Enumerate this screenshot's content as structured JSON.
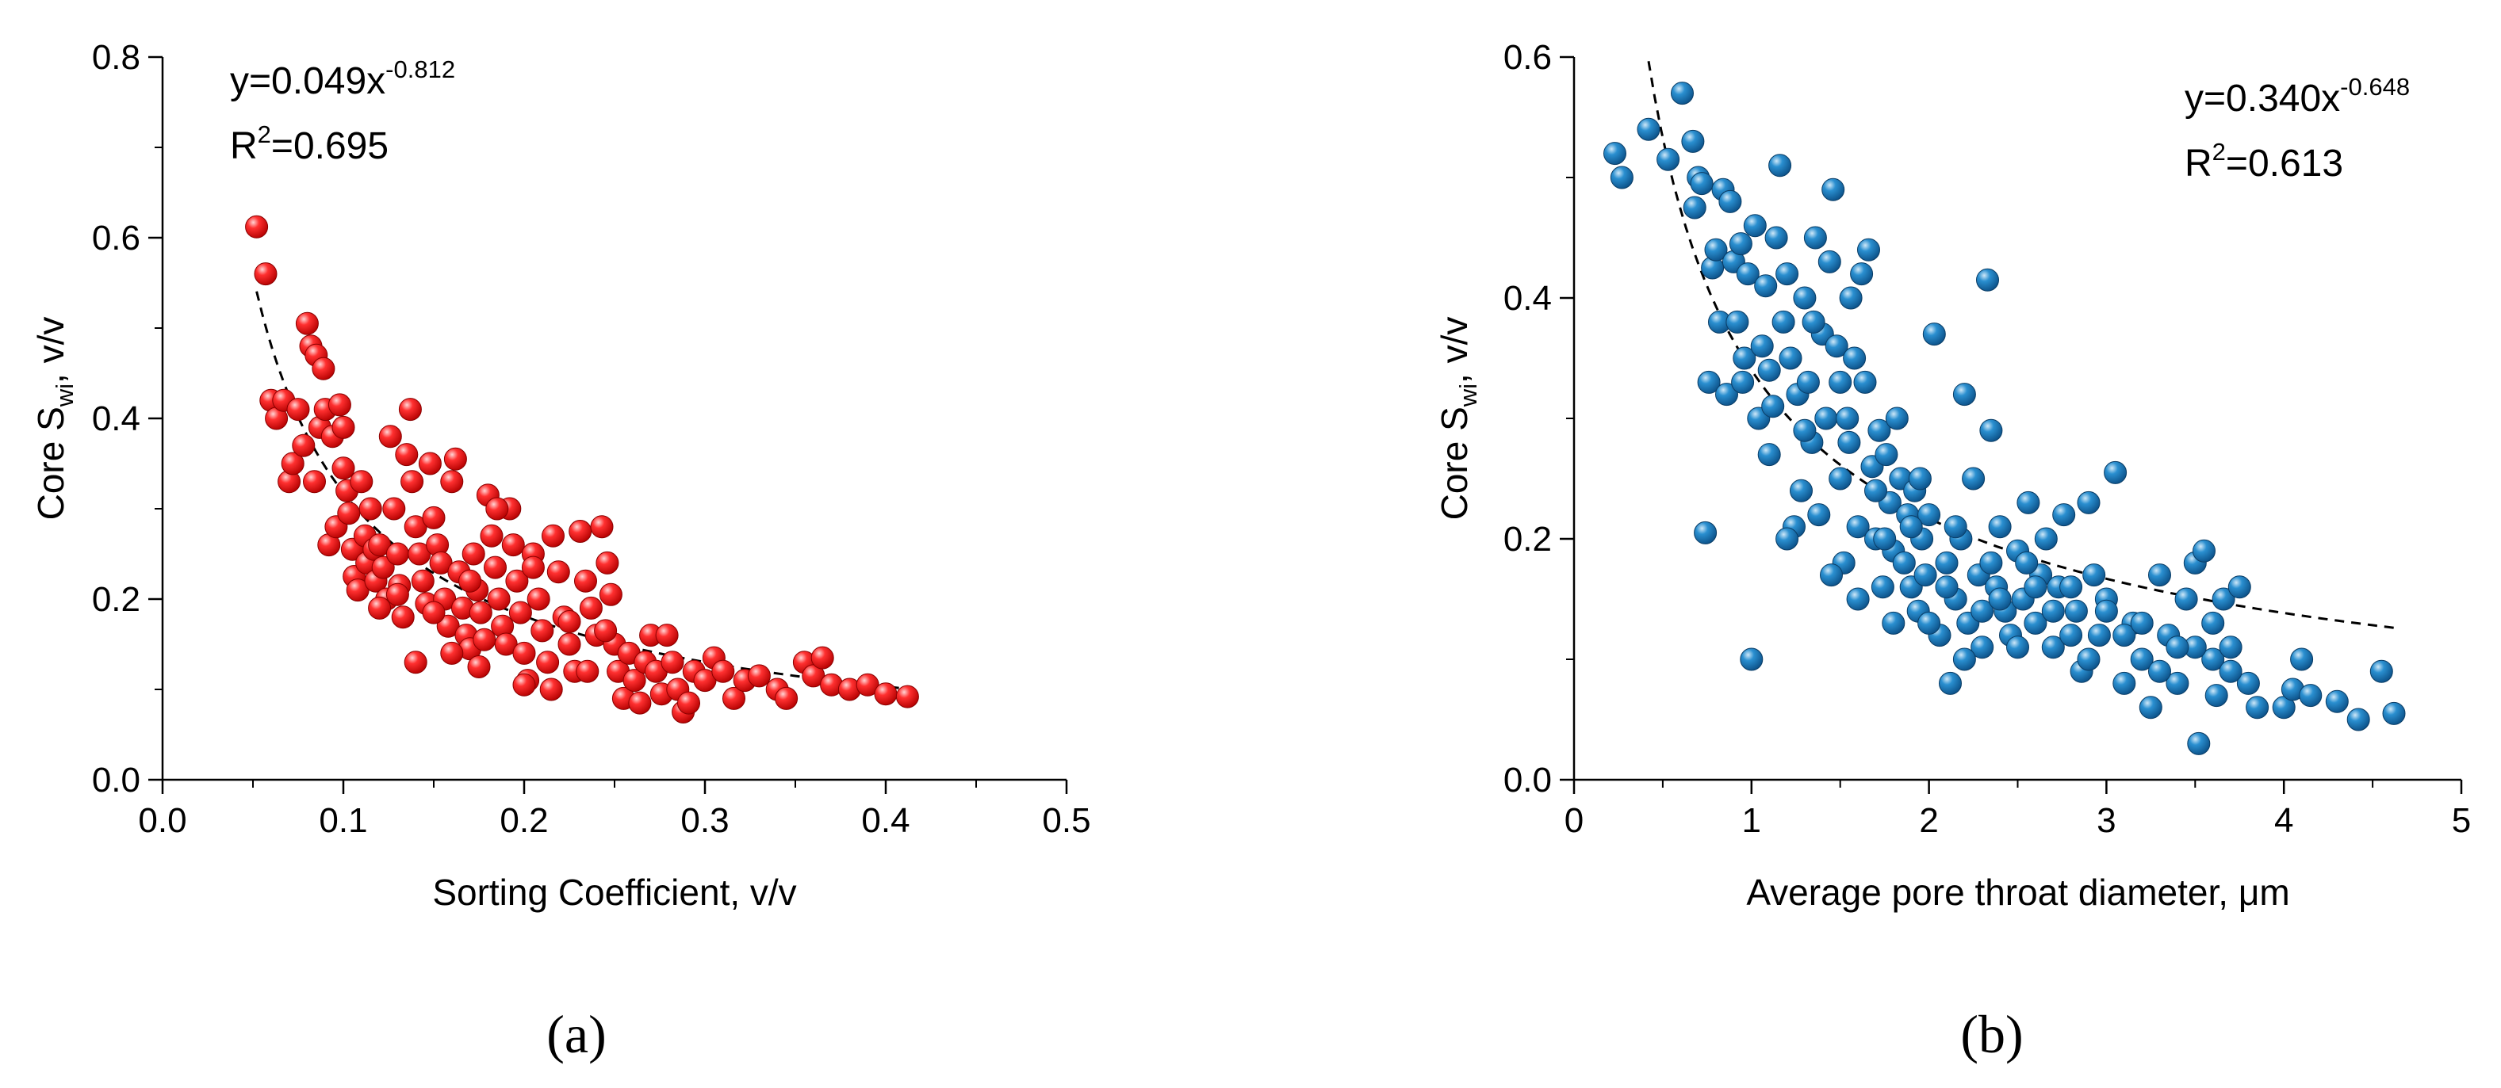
{
  "chart_data": [
    {
      "type": "scatter",
      "panel_label": "(a)",
      "xlabel": "Sorting Coefficient, v/v",
      "ylabel": "Core S",
      "ylabel_sub": "wi",
      "ylabel_suffix": ", v/v",
      "xlim": [
        0.0,
        0.5
      ],
      "ylim": [
        0.0,
        0.8
      ],
      "xticks": [
        0.0,
        0.1,
        0.2,
        0.3,
        0.4,
        0.5
      ],
      "xtick_labels": [
        "0.0",
        "0.1",
        "0.2",
        "0.3",
        "0.4",
        "0.5"
      ],
      "yticks": [
        0.0,
        0.2,
        0.4,
        0.6,
        0.8
      ],
      "ytick_labels": [
        "0.0",
        "0.2",
        "0.4",
        "0.6",
        "0.8"
      ],
      "equation": "y=0.049x",
      "exponent": "-0.812",
      "r2_prefix": "R",
      "r2_sup": "2",
      "r2_value": "=0.695",
      "fit": {
        "a": 0.049,
        "b": -0.812,
        "x_start": 0.052,
        "x_end": 0.41
      },
      "marker_color": "#ff1a1a",
      "points": [
        [
          0.052,
          0.612
        ],
        [
          0.057,
          0.56
        ],
        [
          0.06,
          0.42
        ],
        [
          0.063,
          0.4
        ],
        [
          0.067,
          0.42
        ],
        [
          0.07,
          0.33
        ],
        [
          0.072,
          0.35
        ],
        [
          0.075,
          0.41
        ],
        [
          0.078,
          0.37
        ],
        [
          0.08,
          0.505
        ],
        [
          0.082,
          0.48
        ],
        [
          0.084,
          0.33
        ],
        [
          0.085,
          0.47
        ],
        [
          0.087,
          0.39
        ],
        [
          0.089,
          0.455
        ],
        [
          0.09,
          0.41
        ],
        [
          0.092,
          0.26
        ],
        [
          0.094,
          0.38
        ],
        [
          0.096,
          0.28
        ],
        [
          0.098,
          0.415
        ],
        [
          0.1,
          0.39
        ],
        [
          0.1,
          0.345
        ],
        [
          0.102,
          0.32
        ],
        [
          0.103,
          0.295
        ],
        [
          0.105,
          0.255
        ],
        [
          0.106,
          0.225
        ],
        [
          0.108,
          0.21
        ],
        [
          0.11,
          0.33
        ],
        [
          0.112,
          0.27
        ],
        [
          0.113,
          0.24
        ],
        [
          0.115,
          0.3
        ],
        [
          0.117,
          0.255
        ],
        [
          0.118,
          0.22
        ],
        [
          0.12,
          0.26
        ],
        [
          0.122,
          0.235
        ],
        [
          0.124,
          0.2
        ],
        [
          0.126,
          0.38
        ],
        [
          0.128,
          0.3
        ],
        [
          0.13,
          0.25
        ],
        [
          0.131,
          0.215
        ],
        [
          0.133,
          0.18
        ],
        [
          0.135,
          0.36
        ],
        [
          0.137,
          0.41
        ],
        [
          0.138,
          0.33
        ],
        [
          0.14,
          0.28
        ],
        [
          0.142,
          0.25
        ],
        [
          0.144,
          0.22
        ],
        [
          0.146,
          0.195
        ],
        [
          0.148,
          0.35
        ],
        [
          0.15,
          0.29
        ],
        [
          0.152,
          0.26
        ],
        [
          0.154,
          0.24
        ],
        [
          0.156,
          0.2
        ],
        [
          0.158,
          0.17
        ],
        [
          0.16,
          0.33
        ],
        [
          0.162,
          0.355
        ],
        [
          0.164,
          0.23
        ],
        [
          0.166,
          0.19
        ],
        [
          0.168,
          0.16
        ],
        [
          0.17,
          0.145
        ],
        [
          0.172,
          0.25
        ],
        [
          0.174,
          0.21
        ],
        [
          0.176,
          0.185
        ],
        [
          0.178,
          0.155
        ],
        [
          0.18,
          0.315
        ],
        [
          0.182,
          0.27
        ],
        [
          0.184,
          0.235
        ],
        [
          0.186,
          0.2
        ],
        [
          0.188,
          0.17
        ],
        [
          0.19,
          0.15
        ],
        [
          0.192,
          0.3
        ],
        [
          0.194,
          0.26
        ],
        [
          0.196,
          0.22
        ],
        [
          0.198,
          0.185
        ],
        [
          0.2,
          0.14
        ],
        [
          0.202,
          0.11
        ],
        [
          0.205,
          0.25
        ],
        [
          0.208,
          0.2
        ],
        [
          0.21,
          0.165
        ],
        [
          0.213,
          0.13
        ],
        [
          0.216,
          0.27
        ],
        [
          0.219,
          0.23
        ],
        [
          0.222,
          0.18
        ],
        [
          0.225,
          0.15
        ],
        [
          0.228,
          0.12
        ],
        [
          0.231,
          0.275
        ],
        [
          0.234,
          0.22
        ],
        [
          0.237,
          0.19
        ],
        [
          0.24,
          0.16
        ],
        [
          0.243,
          0.28
        ],
        [
          0.246,
          0.24
        ],
        [
          0.248,
          0.205
        ],
        [
          0.25,
          0.15
        ],
        [
          0.252,
          0.12
        ],
        [
          0.255,
          0.09
        ],
        [
          0.258,
          0.14
        ],
        [
          0.261,
          0.11
        ],
        [
          0.264,
          0.085
        ],
        [
          0.267,
          0.13
        ],
        [
          0.27,
          0.16
        ],
        [
          0.273,
          0.12
        ],
        [
          0.276,
          0.095
        ],
        [
          0.279,
          0.16
        ],
        [
          0.282,
          0.13
        ],
        [
          0.285,
          0.1
        ],
        [
          0.288,
          0.075
        ],
        [
          0.291,
          0.085
        ],
        [
          0.294,
          0.12
        ],
        [
          0.3,
          0.11
        ],
        [
          0.305,
          0.135
        ],
        [
          0.31,
          0.12
        ],
        [
          0.316,
          0.09
        ],
        [
          0.322,
          0.11
        ],
        [
          0.33,
          0.115
        ],
        [
          0.34,
          0.1
        ],
        [
          0.345,
          0.09
        ],
        [
          0.355,
          0.13
        ],
        [
          0.36,
          0.115
        ],
        [
          0.365,
          0.135
        ],
        [
          0.37,
          0.105
        ],
        [
          0.38,
          0.1
        ],
        [
          0.39,
          0.105
        ],
        [
          0.4,
          0.095
        ],
        [
          0.412,
          0.092
        ],
        [
          0.14,
          0.13
        ],
        [
          0.16,
          0.14
        ],
        [
          0.175,
          0.125
        ],
        [
          0.2,
          0.105
        ],
        [
          0.215,
          0.1
        ],
        [
          0.235,
          0.12
        ],
        [
          0.12,
          0.19
        ],
        [
          0.13,
          0.205
        ],
        [
          0.15,
          0.185
        ],
        [
          0.17,
          0.22
        ],
        [
          0.185,
          0.3
        ],
        [
          0.205,
          0.235
        ],
        [
          0.225,
          0.175
        ],
        [
          0.245,
          0.165
        ]
      ]
    },
    {
      "type": "scatter",
      "panel_label": "(b)",
      "xlabel": "Average pore throat diameter, μm",
      "ylabel": "Core S",
      "ylabel_sub": "wi",
      "ylabel_suffix": ", v/v",
      "xlim": [
        0,
        5
      ],
      "ylim": [
        0.0,
        0.6
      ],
      "xticks": [
        0,
        1,
        2,
        3,
        4,
        5
      ],
      "xtick_labels": [
        "0",
        "1",
        "2",
        "3",
        "4",
        "5"
      ],
      "yticks": [
        0.0,
        0.2,
        0.4,
        0.6
      ],
      "ytick_labels": [
        "0.0",
        "0.2",
        "0.4",
        "0.6"
      ],
      "equation": "y=0.340x",
      "exponent": "-0.648",
      "r2_prefix": "R",
      "r2_sup": "2",
      "r2_value": "=0.613",
      "fit": {
        "a": 0.34,
        "b": -0.648,
        "x_start": 0.42,
        "x_end": 4.62
      },
      "marker_color": "#1f7fc0",
      "points": [
        [
          0.23,
          0.52
        ],
        [
          0.27,
          0.5
        ],
        [
          0.42,
          0.54
        ],
        [
          0.53,
          0.515
        ],
        [
          0.61,
          0.57
        ],
        [
          0.67,
          0.53
        ],
        [
          0.68,
          0.475
        ],
        [
          0.7,
          0.5
        ],
        [
          0.72,
          0.495
        ],
        [
          0.74,
          0.205
        ],
        [
          0.76,
          0.33
        ],
        [
          0.78,
          0.425
        ],
        [
          0.8,
          0.44
        ],
        [
          0.82,
          0.38
        ],
        [
          0.84,
          0.49
        ],
        [
          0.86,
          0.32
        ],
        [
          0.88,
          0.48
        ],
        [
          0.9,
          0.43
        ],
        [
          0.92,
          0.38
        ],
        [
          0.94,
          0.445
        ],
        [
          0.96,
          0.35
        ],
        [
          0.98,
          0.42
        ],
        [
          1.0,
          0.1
        ],
        [
          1.02,
          0.46
        ],
        [
          1.04,
          0.3
        ],
        [
          1.06,
          0.36
        ],
        [
          1.08,
          0.41
        ],
        [
          1.1,
          0.34
        ],
        [
          1.12,
          0.31
        ],
        [
          1.14,
          0.45
        ],
        [
          1.16,
          0.51
        ],
        [
          1.18,
          0.38
        ],
        [
          1.2,
          0.42
        ],
        [
          1.22,
          0.35
        ],
        [
          1.24,
          0.21
        ],
        [
          1.26,
          0.32
        ],
        [
          1.28,
          0.24
        ],
        [
          1.3,
          0.4
        ],
        [
          1.32,
          0.33
        ],
        [
          1.34,
          0.28
        ],
        [
          1.36,
          0.45
        ],
        [
          1.38,
          0.22
        ],
        [
          1.4,
          0.37
        ],
        [
          1.42,
          0.3
        ],
        [
          1.44,
          0.43
        ],
        [
          1.46,
          0.49
        ],
        [
          1.48,
          0.36
        ],
        [
          1.5,
          0.25
        ],
        [
          1.52,
          0.18
        ],
        [
          1.54,
          0.3
        ],
        [
          1.56,
          0.4
        ],
        [
          1.58,
          0.35
        ],
        [
          1.6,
          0.21
        ],
        [
          1.62,
          0.42
        ],
        [
          1.64,
          0.33
        ],
        [
          1.66,
          0.44
        ],
        [
          1.68,
          0.26
        ],
        [
          1.7,
          0.2
        ],
        [
          1.72,
          0.29
        ],
        [
          1.74,
          0.16
        ],
        [
          1.76,
          0.27
        ],
        [
          1.78,
          0.23
        ],
        [
          1.8,
          0.19
        ],
        [
          1.82,
          0.3
        ],
        [
          1.84,
          0.25
        ],
        [
          1.86,
          0.18
        ],
        [
          1.88,
          0.22
        ],
        [
          1.9,
          0.16
        ],
        [
          1.92,
          0.24
        ],
        [
          1.94,
          0.14
        ],
        [
          1.96,
          0.2
        ],
        [
          1.98,
          0.17
        ],
        [
          2.0,
          0.22
        ],
        [
          2.03,
          0.37
        ],
        [
          2.06,
          0.12
        ],
        [
          2.1,
          0.18
        ],
        [
          2.12,
          0.08
        ],
        [
          2.15,
          0.15
        ],
        [
          2.18,
          0.2
        ],
        [
          2.2,
          0.32
        ],
        [
          2.22,
          0.13
        ],
        [
          2.25,
          0.25
        ],
        [
          2.28,
          0.17
        ],
        [
          2.3,
          0.11
        ],
        [
          2.33,
          0.415
        ],
        [
          2.35,
          0.29
        ],
        [
          2.38,
          0.16
        ],
        [
          2.4,
          0.21
        ],
        [
          2.43,
          0.14
        ],
        [
          2.46,
          0.12
        ],
        [
          2.5,
          0.19
        ],
        [
          2.53,
          0.15
        ],
        [
          2.56,
          0.23
        ],
        [
          2.6,
          0.13
        ],
        [
          2.63,
          0.17
        ],
        [
          2.66,
          0.2
        ],
        [
          2.7,
          0.11
        ],
        [
          2.73,
          0.16
        ],
        [
          2.76,
          0.22
        ],
        [
          2.8,
          0.12
        ],
        [
          2.83,
          0.14
        ],
        [
          2.86,
          0.09
        ],
        [
          2.9,
          0.23
        ],
        [
          2.93,
          0.17
        ],
        [
          2.96,
          0.12
        ],
        [
          3.0,
          0.15
        ],
        [
          3.05,
          0.255
        ],
        [
          3.1,
          0.08
        ],
        [
          3.15,
          0.13
        ],
        [
          3.2,
          0.1
        ],
        [
          3.25,
          0.06
        ],
        [
          3.3,
          0.17
        ],
        [
          3.35,
          0.12
        ],
        [
          3.4,
          0.08
        ],
        [
          3.45,
          0.15
        ],
        [
          3.5,
          0.18
        ],
        [
          3.52,
          0.03
        ],
        [
          3.55,
          0.19
        ],
        [
          3.6,
          0.1
        ],
        [
          3.62,
          0.07
        ],
        [
          3.66,
          0.15
        ],
        [
          3.7,
          0.11
        ],
        [
          3.75,
          0.16
        ],
        [
          3.8,
          0.08
        ],
        [
          3.85,
          0.06
        ],
        [
          4.0,
          0.06
        ],
        [
          4.05,
          0.075
        ],
        [
          4.1,
          0.1
        ],
        [
          4.15,
          0.07
        ],
        [
          4.3,
          0.065
        ],
        [
          4.42,
          0.05
        ],
        [
          4.55,
          0.09
        ],
        [
          4.62,
          0.055
        ],
        [
          1.1,
          0.27
        ],
        [
          1.3,
          0.29
        ],
        [
          1.5,
          0.33
        ],
        [
          1.7,
          0.24
        ],
        [
          1.9,
          0.21
        ],
        [
          2.1,
          0.16
        ],
        [
          2.3,
          0.14
        ],
        [
          2.5,
          0.11
        ],
        [
          2.7,
          0.14
        ],
        [
          2.9,
          0.1
        ],
        [
          3.1,
          0.12
        ],
        [
          3.3,
          0.09
        ],
        [
          3.5,
          0.11
        ],
        [
          3.7,
          0.09
        ],
        [
          1.2,
          0.2
        ],
        [
          1.45,
          0.17
        ],
        [
          1.6,
          0.15
        ],
        [
          1.8,
          0.13
        ],
        [
          2.0,
          0.13
        ],
        [
          2.2,
          0.1
        ],
        [
          2.4,
          0.15
        ],
        [
          2.6,
          0.16
        ],
        [
          2.8,
          0.16
        ],
        [
          3.0,
          0.14
        ],
        [
          3.2,
          0.13
        ],
        [
          3.4,
          0.11
        ],
        [
          3.6,
          0.13
        ],
        [
          0.95,
          0.33
        ],
        [
          1.35,
          0.38
        ],
        [
          1.55,
          0.28
        ],
        [
          1.75,
          0.2
        ],
        [
          1.95,
          0.25
        ],
        [
          2.15,
          0.21
        ],
        [
          2.35,
          0.18
        ],
        [
          2.55,
          0.18
        ]
      ]
    }
  ]
}
